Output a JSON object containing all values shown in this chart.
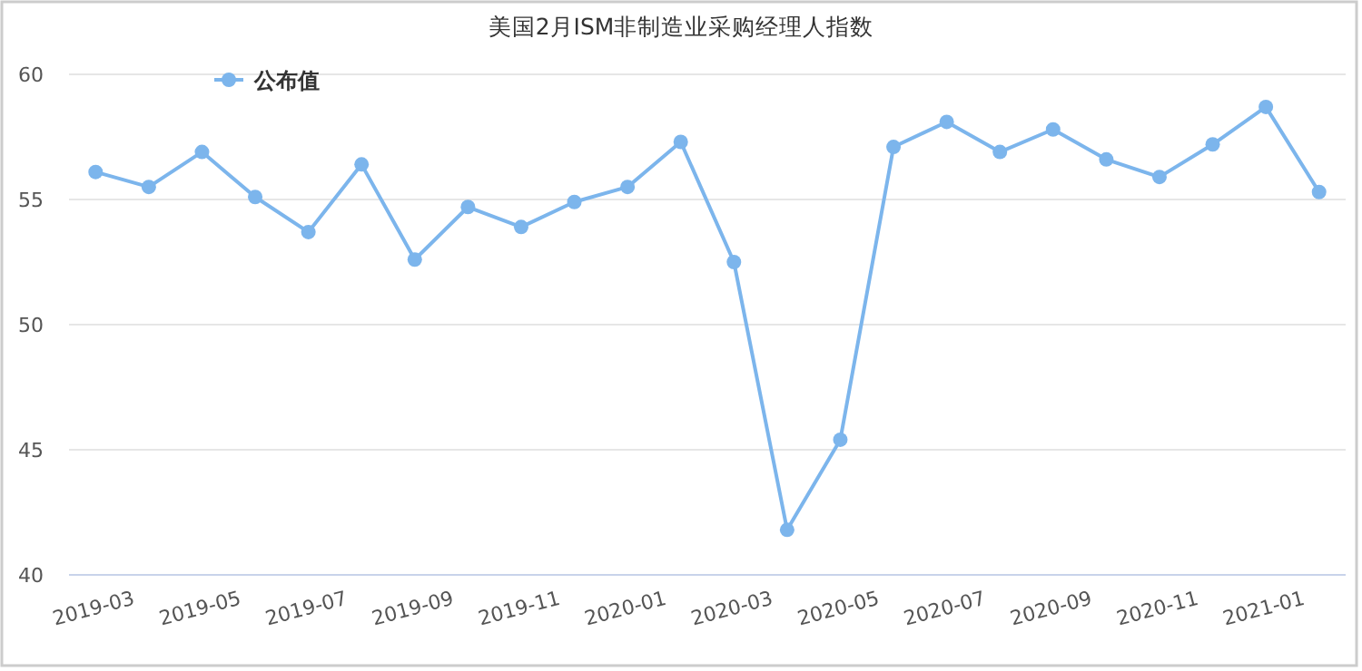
{
  "chart_data": {
    "type": "line",
    "title": "美国2月ISM非制造业采购经理人指数",
    "categories": [
      "2019-03",
      null,
      "2019-05",
      null,
      "2019-07",
      null,
      "2019-09",
      null,
      "2019-11",
      null,
      "2020-01",
      null,
      "2020-03",
      null,
      "2020-05",
      null,
      "2020-07",
      null,
      "2020-09",
      null,
      "2020-11",
      null,
      "2021-01",
      null
    ],
    "series": [
      {
        "name": "公布值",
        "color": "#7cb5ec",
        "values": [
          56.1,
          55.5,
          56.9,
          55.1,
          53.7,
          56.4,
          52.6,
          54.7,
          53.9,
          54.9,
          55.5,
          57.3,
          52.5,
          41.8,
          45.4,
          57.1,
          58.1,
          56.9,
          57.8,
          56.6,
          55.9,
          57.2,
          58.7,
          55.3
        ]
      }
    ],
    "ylim": [
      40,
      60
    ],
    "yticks": [
      40,
      45,
      50,
      55,
      60
    ],
    "grid": "y",
    "legend": "top left",
    "marker": "circle",
    "line_style": "solid"
  }
}
